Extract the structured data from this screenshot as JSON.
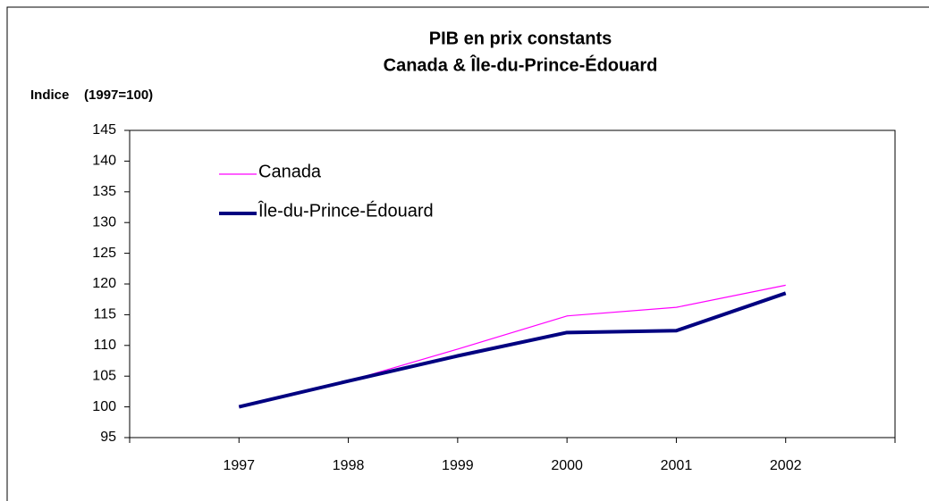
{
  "chart_data": {
    "type": "line",
    "title": "PIB en prix constants",
    "subtitle": "Canada & Île-du-Prince-Édouard",
    "y_label": "Indice    (1997=100)",
    "categories": [
      "1997",
      "1998",
      "1999",
      "2000",
      "2001",
      "2002"
    ],
    "series": [
      {
        "name": "Canada",
        "color": "#ff00ff",
        "values": [
          100,
          104.2,
          109.4,
          114.8,
          116.2,
          119.8
        ]
      },
      {
        "name": "Île-du-Prince-Édouard",
        "color": "#000080",
        "values": [
          100,
          104.2,
          108.3,
          112.1,
          112.4,
          118.5
        ]
      }
    ],
    "ylim": [
      95,
      145
    ],
    "yticks": [
      95,
      100,
      105,
      110,
      115,
      120,
      125,
      130,
      135,
      140,
      145
    ],
    "grid": false,
    "legend": "upper left"
  }
}
